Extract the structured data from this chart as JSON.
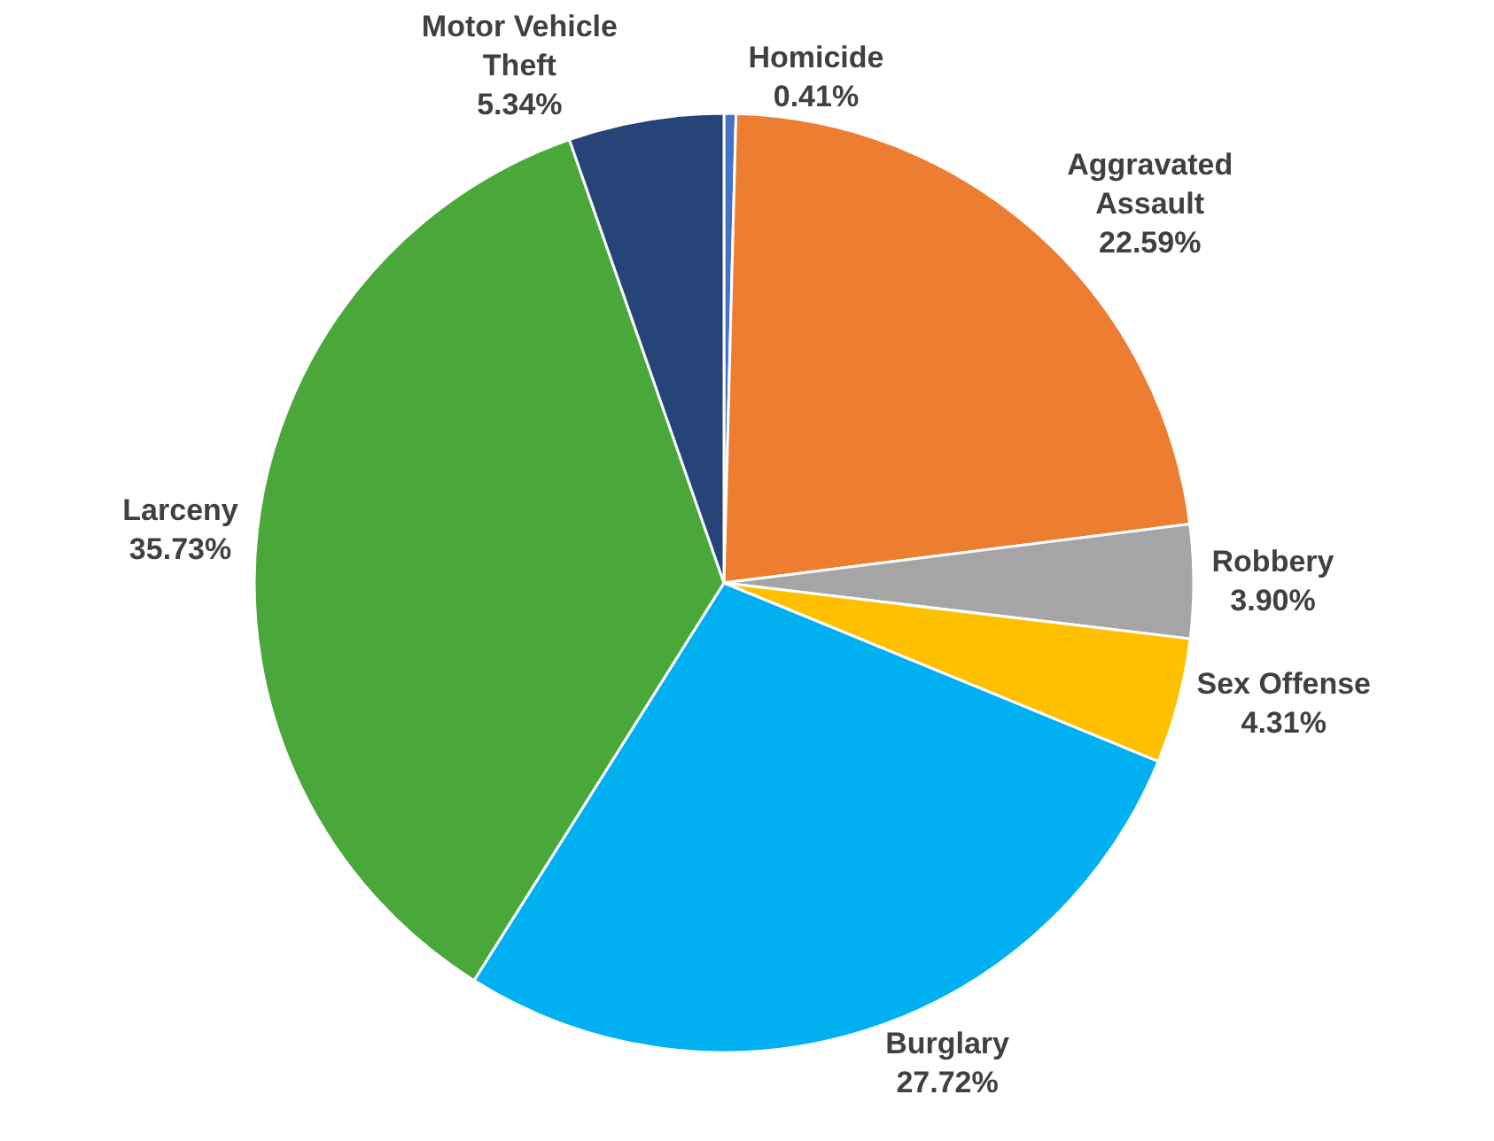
{
  "chart_data": {
    "type": "pie",
    "categories": [
      "Homicide",
      "Aggravated Assault",
      "Robbery",
      "Sex Offense",
      "Burglary",
      "Larceny",
      "Motor Vehicle Theft"
    ],
    "values": [
      0.41,
      22.59,
      3.9,
      4.31,
      27.72,
      35.73,
      5.34
    ],
    "value_labels": [
      "0.41%",
      "22.59%",
      "3.90%",
      "4.31%",
      "27.72%",
      "35.73%",
      "5.34%"
    ],
    "colors": [
      "#4472c4",
      "#ed7d31",
      "#a5a5a5",
      "#ffc000",
      "#00b0f0",
      "#4aa83a",
      "#264478"
    ],
    "legend": false
  }
}
